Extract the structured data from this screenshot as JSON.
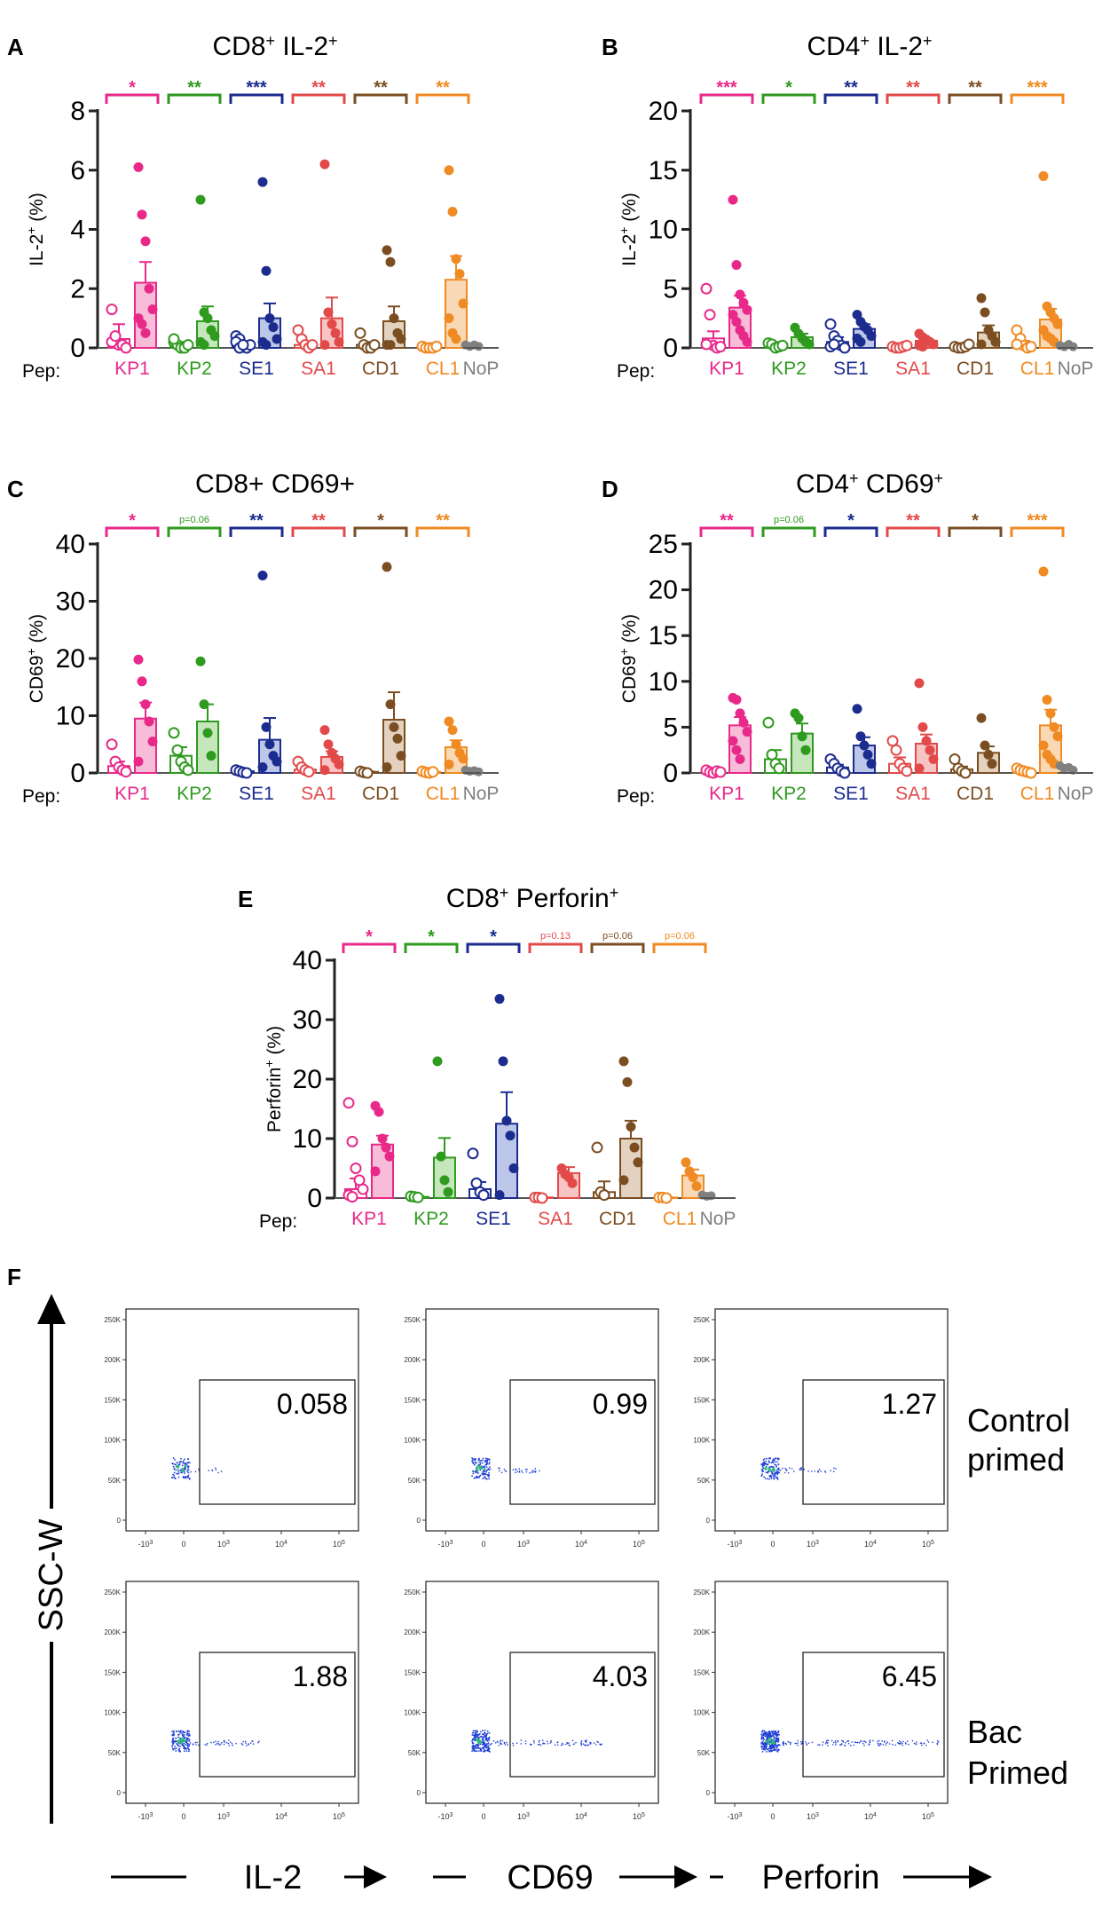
{
  "figure": {
    "pep_label": "Pep:",
    "nop_label": "NoP",
    "nop_color": "#808080",
    "peptides": [
      {
        "name": "KP1",
        "color": "#e8298a",
        "fill": "#f6bcd8"
      },
      {
        "name": "KP2",
        "color": "#2e9a1e",
        "fill": "#c6e6bc"
      },
      {
        "name": "SE1",
        "color": "#1b2b8e",
        "fill": "#bcc6e8"
      },
      {
        "name": "SA1",
        "color": "#e24a4a",
        "fill": "#f7c4c4"
      },
      {
        "name": "CD1",
        "color": "#7b4e22",
        "fill": "#e2d2bf"
      },
      {
        "name": "CL1",
        "color": "#f08a22",
        "fill": "#f9d9b5"
      }
    ]
  },
  "chart_data": [
    {
      "panel": "A",
      "type": "bar",
      "title": "CD8",
      "title_sup1": "+",
      "title_mid": " IL-2",
      "title_sup2": "+",
      "ylabel": "IL-2",
      "ylabel_sup": "+",
      "ylabel_tail": " (%)",
      "ylim": [
        0,
        8
      ],
      "yticks": [
        "0",
        "2",
        "4",
        "6",
        "8"
      ],
      "yticks_values": [
        0,
        2,
        4,
        6,
        8
      ],
      "sig": [
        "*",
        "**",
        "***",
        "**",
        "**",
        "**"
      ],
      "groups": [
        {
          "open_mean": 0.3,
          "open_err": 0.5,
          "open_pts": [
            1.3,
            0.3,
            0.1,
            0.1,
            0,
            0.2,
            0.4
          ],
          "filled_mean": 2.2,
          "filled_err": 0.7,
          "filled_pts": [
            6.1,
            4.5,
            3.6,
            2.0,
            1.3,
            1.0,
            0.8,
            0.5
          ]
        },
        {
          "open_mean": 0.1,
          "open_err": 0.1,
          "open_pts": [
            0.2,
            0.1,
            0,
            0,
            0.1,
            0.3
          ],
          "filled_mean": 0.9,
          "filled_err": 0.5,
          "filled_pts": [
            5.0,
            1.2,
            1.0,
            0.6,
            0.4,
            0.2,
            0.1
          ]
        },
        {
          "open_mean": 0.1,
          "open_err": 0.1,
          "open_pts": [
            0.4,
            0.3,
            0.1,
            0,
            0.1,
            0.2,
            0,
            0.1
          ],
          "filled_mean": 1.0,
          "filled_err": 0.5,
          "filled_pts": [
            5.6,
            2.6,
            1.0,
            0.7,
            0.3,
            0.2,
            0.1
          ]
        },
        {
          "open_mean": 0.1,
          "open_err": 0.1,
          "open_pts": [
            0.6,
            0.3,
            0.1,
            0,
            0.1
          ],
          "filled_mean": 1.0,
          "filled_err": 0.7,
          "filled_pts": [
            6.2,
            1.2,
            0.8,
            0.5,
            0.2,
            0.1
          ]
        },
        {
          "open_mean": 0.1,
          "open_err": 0.1,
          "open_pts": [
            0.5,
            0.1,
            0,
            0,
            0.1
          ],
          "filled_mean": 0.9,
          "filled_err": 0.5,
          "filled_pts": [
            3.3,
            2.9,
            1.0,
            0.5,
            0.3,
            0.1,
            0.1
          ]
        },
        {
          "open_mean": 0.05,
          "open_err": 0.05,
          "open_pts": [
            0.05,
            0,
            0,
            0,
            0.05
          ],
          "filled_mean": 2.3,
          "filled_err": 0.8,
          "filled_pts": [
            6.0,
            4.6,
            3.0,
            2.5,
            1.5,
            1.0,
            0.5,
            0.3
          ]
        }
      ],
      "nop_pts": [
        0.1,
        0.05,
        0.1,
        0.05
      ]
    },
    {
      "panel": "B",
      "type": "bar",
      "title": "CD4",
      "title_sup1": "+",
      "title_mid": " IL-2",
      "title_sup2": "+",
      "ylabel": "IL-2",
      "ylabel_sup": "+",
      "ylabel_tail": " (%)",
      "ylim": [
        0,
        20
      ],
      "yticks": [
        "0",
        "5",
        "10",
        "15",
        "20"
      ],
      "yticks_values": [
        0,
        5,
        10,
        15,
        20
      ],
      "sig": [
        "***",
        "*",
        "**",
        "**",
        "**",
        "***"
      ],
      "groups": [
        {
          "open_mean": 0.8,
          "open_err": 0.6,
          "open_pts": [
            5.0,
            2.8,
            0.2,
            0,
            0.1,
            0.3
          ],
          "filled_mean": 3.4,
          "filled_err": 1.0,
          "filled_pts": [
            12.5,
            7.0,
            4.5,
            3.8,
            3.2,
            2.8,
            2.2,
            1.5,
            1.0,
            0.5
          ]
        },
        {
          "open_mean": 0.2,
          "open_err": 0.2,
          "open_pts": [
            0.4,
            0.3,
            0,
            0.1,
            0.2
          ],
          "filled_mean": 0.9,
          "filled_err": 0.3,
          "filled_pts": [
            1.7,
            1.2,
            0.8,
            0.5,
            0.3
          ]
        },
        {
          "open_mean": 0.5,
          "open_err": 0.4,
          "open_pts": [
            2.0,
            1.0,
            0.6,
            0.2,
            0,
            0.1,
            0.3
          ],
          "filled_mean": 1.6,
          "filled_err": 0.4,
          "filled_pts": [
            2.8,
            2.2,
            1.8,
            1.5,
            1.0,
            0.8,
            0.5
          ]
        },
        {
          "open_mean": 0.1,
          "open_err": 0.1,
          "open_pts": [
            0.1,
            0,
            0,
            0.1,
            0.2
          ],
          "filled_mean": 0.6,
          "filled_err": 0.2,
          "filled_pts": [
            1.2,
            0.9,
            0.7,
            0.5,
            0.3,
            0.2,
            0.1
          ]
        },
        {
          "open_mean": 0.1,
          "open_err": 0.1,
          "open_pts": [
            0.1,
            0,
            0,
            0.1,
            0.3
          ],
          "filled_mean": 1.3,
          "filled_err": 0.6,
          "filled_pts": [
            4.2,
            3.0,
            1.5,
            1.0,
            0.5,
            0.3
          ]
        },
        {
          "open_mean": 0.3,
          "open_err": 0.3,
          "open_pts": [
            1.5,
            0.8,
            0.2,
            0,
            0.1,
            0.3
          ],
          "filled_mean": 2.4,
          "filled_err": 0.9,
          "filled_pts": [
            14.5,
            3.5,
            3.0,
            2.5,
            2.0,
            1.5,
            1.0,
            0.8,
            0.5
          ]
        }
      ],
      "nop_pts": [
        0.2,
        0.1,
        0.3,
        0.1
      ]
    },
    {
      "panel": "C",
      "type": "bar",
      "title": "CD8+ CD69+",
      "title_sup1": "",
      "title_mid": "",
      "title_sup2": "",
      "ylabel": "CD69",
      "ylabel_sup": "+",
      "ylabel_tail": " (%)",
      "ylim": [
        0,
        40
      ],
      "yticks": [
        "0",
        "10",
        "20",
        "30",
        "40"
      ],
      "yticks_values": [
        0,
        10,
        20,
        30,
        40
      ],
      "sig": [
        "*",
        "p=0.06",
        "**",
        "**",
        "*",
        "**"
      ],
      "groups": [
        {
          "open_mean": 1.2,
          "open_err": 0.8,
          "open_pts": [
            5.0,
            2.0,
            1.0,
            0.5,
            0.2
          ],
          "filled_mean": 9.5,
          "filled_err": 2.8,
          "filled_pts": [
            19.8,
            16.0,
            12.0,
            9.0,
            5.5,
            2.0
          ]
        },
        {
          "open_mean": 3.0,
          "open_err": 1.5,
          "open_pts": [
            7.0,
            4.0,
            2.0,
            1.0,
            0.5
          ],
          "filled_mean": 9.0,
          "filled_err": 3.0,
          "filled_pts": [
            19.5,
            12.0,
            7.0,
            3.0
          ]
        },
        {
          "open_mean": 0.3,
          "open_err": 0.2,
          "open_pts": [
            0.5,
            0.3,
            0.1,
            0
          ],
          "filled_mean": 5.8,
          "filled_err": 3.8,
          "filled_pts": [
            34.5,
            8.0,
            5.0,
            3.0,
            2.0,
            1.0
          ]
        },
        {
          "open_mean": 0.6,
          "open_err": 0.3,
          "open_pts": [
            2.0,
            1.0,
            0.5,
            0.2
          ],
          "filled_mean": 2.8,
          "filled_err": 1.0,
          "filled_pts": [
            7.5,
            5.0,
            3.5,
            2.5,
            1.5,
            0.5
          ]
        },
        {
          "open_mean": 0.2,
          "open_err": 0.1,
          "open_pts": [
            0.3,
            0.1,
            0
          ],
          "filled_mean": 9.3,
          "filled_err": 4.8,
          "filled_pts": [
            36.0,
            12.0,
            8.0,
            6.0,
            3.0,
            1.0
          ]
        },
        {
          "open_mean": 0.2,
          "open_err": 0.1,
          "open_pts": [
            0.3,
            0.1,
            0,
            0.2
          ],
          "filled_mean": 4.5,
          "filled_err": 1.2,
          "filled_pts": [
            9.0,
            7.5,
            5.0,
            3.5,
            2.5,
            1.5
          ]
        }
      ],
      "nop_pts": [
        0.5,
        0.3,
        0.4,
        0.2
      ]
    },
    {
      "panel": "D",
      "type": "bar",
      "title": "CD4",
      "title_sup1": "+",
      "title_mid": " CD69",
      "title_sup2": "+",
      "ylabel": "CD69",
      "ylabel_sup": "+",
      "ylabel_tail": " (%)",
      "ylim": [
        0,
        25
      ],
      "yticks": [
        "0",
        "5",
        "10",
        "15",
        "20",
        "25"
      ],
      "yticks_values": [
        0,
        5,
        10,
        15,
        20,
        25
      ],
      "sig": [
        "**",
        "p=0.06",
        "*",
        "**",
        "*",
        "***"
      ],
      "groups": [
        {
          "open_mean": 0.2,
          "open_err": 0.1,
          "open_pts": [
            0.3,
            0.1,
            0,
            0.2,
            0.1
          ],
          "filled_mean": 5.2,
          "filled_err": 0.9,
          "filled_pts": [
            8.2,
            8.0,
            6.5,
            5.5,
            4.5,
            3.5,
            2.5,
            1.5
          ]
        },
        {
          "open_mean": 1.5,
          "open_err": 1.0,
          "open_pts": [
            5.5,
            2.0,
            1.0,
            0.5
          ],
          "filled_mean": 4.3,
          "filled_err": 1.1,
          "filled_pts": [
            6.5,
            6.0,
            4.0,
            2.5
          ]
        },
        {
          "open_mean": 0.6,
          "open_err": 0.3,
          "open_pts": [
            1.5,
            1.0,
            0.5,
            0.2,
            0
          ],
          "filled_mean": 3.0,
          "filled_err": 0.9,
          "filled_pts": [
            7.0,
            4.0,
            3.0,
            2.0,
            1.0
          ]
        },
        {
          "open_mean": 1.0,
          "open_err": 0.7,
          "open_pts": [
            3.5,
            2.5,
            1.0,
            0.5,
            0.2
          ],
          "filled_mean": 3.2,
          "filled_err": 1.0,
          "filled_pts": [
            9.8,
            5.0,
            3.5,
            2.5,
            1.5,
            0.5
          ]
        },
        {
          "open_mean": 0.4,
          "open_err": 0.3,
          "open_pts": [
            1.5,
            0.5,
            0.2,
            0
          ],
          "filled_mean": 2.2,
          "filled_err": 0.7,
          "filled_pts": [
            6.0,
            3.0,
            2.0,
            1.0
          ]
        },
        {
          "open_mean": 0.3,
          "open_err": 0.2,
          "open_pts": [
            0.5,
            0.3,
            0.2,
            0.1,
            0
          ],
          "filled_mean": 5.2,
          "filled_err": 1.7,
          "filled_pts": [
            22.0,
            8.0,
            6.5,
            5.0,
            4.0,
            3.0,
            2.0,
            1.5,
            1.0
          ]
        }
      ],
      "nop_pts": [
        0.8,
        0.5,
        0.6,
        0.3
      ]
    },
    {
      "panel": "E",
      "type": "bar",
      "title": "CD8",
      "title_sup1": "+",
      "title_mid": " Perforin",
      "title_sup2": "+",
      "ylabel": "Perforin",
      "ylabel_sup": "+",
      "ylabel_tail": " (%)",
      "ylim": [
        0,
        40
      ],
      "yticks": [
        "0",
        "10",
        "20",
        "30",
        "40"
      ],
      "yticks_values": [
        0,
        10,
        20,
        30,
        40
      ],
      "sig": [
        "*",
        "*",
        "*",
        "p=0.13",
        "p=0.06",
        "p=0.06"
      ],
      "groups": [
        {
          "open_mean": 1.5,
          "open_err": 1.8,
          "open_pts": [
            16.0,
            9.5,
            5.0,
            3.0,
            1.5,
            0.5,
            0.2
          ],
          "filled_mean": 9.0,
          "filled_err": 1.5,
          "filled_pts": [
            15.5,
            14.5,
            10.0,
            8.5,
            7.0,
            4.5
          ]
        },
        {
          "open_mean": 0.2,
          "open_err": 0.1,
          "open_pts": [
            0.3,
            0.2,
            0.1
          ],
          "filled_mean": 6.8,
          "filled_err": 3.3,
          "filled_pts": [
            23.0,
            7.0,
            3.0,
            1.0
          ]
        },
        {
          "open_mean": 1.5,
          "open_err": 1.2,
          "open_pts": [
            7.5,
            2.5,
            1.0,
            0.5
          ],
          "filled_mean": 12.5,
          "filled_err": 5.3,
          "filled_pts": [
            33.5,
            23.0,
            13.0,
            10.5,
            5.0,
            0.5
          ]
        },
        {
          "open_mean": 0.1,
          "open_err": 0.05,
          "open_pts": [
            0.1,
            0.1,
            0
          ],
          "filled_mean": 4.2,
          "filled_err": 1.0,
          "filled_pts": [
            5.0,
            4.0,
            3.5,
            2.5
          ]
        },
        {
          "open_mean": 1.0,
          "open_err": 1.8,
          "open_pts": [
            8.5,
            1.0,
            0.5
          ],
          "filled_mean": 10.0,
          "filled_err": 3.0,
          "filled_pts": [
            23.0,
            19.5,
            12.0,
            8.5,
            6.0,
            3.0
          ]
        },
        {
          "open_mean": 0.1,
          "open_err": 0.05,
          "open_pts": [
            0.1,
            0.1,
            0
          ],
          "filled_mean": 3.8,
          "filled_err": 1.0,
          "filled_pts": [
            6.0,
            4.5,
            3.5,
            2.0
          ]
        }
      ],
      "nop_pts": [
        0.5,
        0.3,
        0.4
      ]
    }
  ],
  "flow": {
    "panel": "F",
    "y_axis_label": "SSC-W",
    "x_axis_labels": [
      "IL-2",
      "CD69",
      "Perforin"
    ],
    "row_labels": [
      [
        "Control",
        "primed"
      ],
      [
        "Bac",
        "Primed"
      ]
    ],
    "yticks": [
      "250K",
      "200K",
      "150K",
      "100K",
      "50K",
      "0"
    ],
    "xticks": [
      "-10",
      "0",
      "10",
      "10",
      "10"
    ],
    "xtick_sups": [
      "3",
      "",
      "3",
      "4",
      "5"
    ],
    "values": [
      [
        "0.058",
        "0.99",
        "1.27"
      ],
      [
        "1.88",
        "4.03",
        "6.45"
      ]
    ],
    "dot_color": "#1f3fd6",
    "core_color": "#2dbf73"
  }
}
